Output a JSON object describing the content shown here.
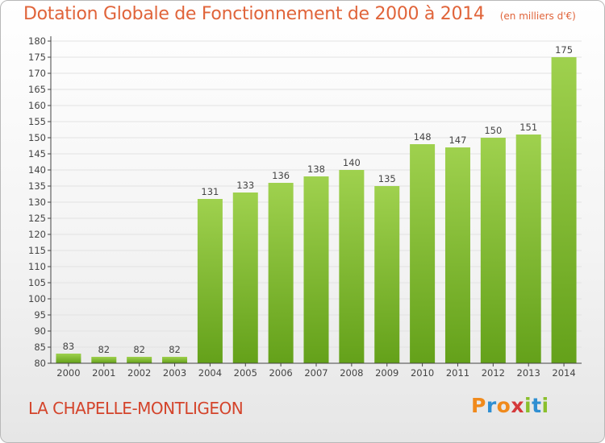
{
  "header": {
    "title": "Dotation Globale de Fonctionnement de 2000 à 2014",
    "unit": "(en milliers d'€)"
  },
  "footer": {
    "commune": "LA CHAPELLE-MONTLIGEON",
    "logo": {
      "text": "Proxiti",
      "letter_colors": [
        "#f08a1c",
        "#2f8fd2",
        "#f08a1c",
        "#d4393b",
        "#8abf2c",
        "#2f8fd2",
        "#8abf2c"
      ]
    }
  },
  "chart_data": {
    "type": "bar",
    "categories": [
      "2000",
      "2001",
      "2002",
      "2003",
      "2004",
      "2005",
      "2006",
      "2007",
      "2008",
      "2009",
      "2010",
      "2011",
      "2012",
      "2013",
      "2014"
    ],
    "values": [
      83,
      82,
      82,
      82,
      131,
      133,
      136,
      138,
      140,
      135,
      148,
      147,
      150,
      151,
      175
    ],
    "data_labels": [
      "83",
      "82",
      "82",
      "82",
      "131",
      "133",
      "136",
      "138",
      "140",
      "135",
      "148",
      "147",
      "150",
      "151",
      "175"
    ],
    "title": "Dotation Globale de Fonctionnement de 2000 à 2014",
    "xlabel": "",
    "ylabel": "",
    "ylim": [
      80,
      180
    ],
    "yticks": [
      80,
      85,
      90,
      95,
      100,
      105,
      110,
      115,
      120,
      125,
      130,
      135,
      140,
      145,
      150,
      155,
      160,
      165,
      170,
      175,
      180
    ],
    "grid": true,
    "legend": "none",
    "colors": {
      "bar_top": "#9fd14e",
      "bar_bottom": "#64a11a",
      "gridline": "#e2e2e2",
      "axis": "#444444",
      "label": "#444444"
    }
  }
}
